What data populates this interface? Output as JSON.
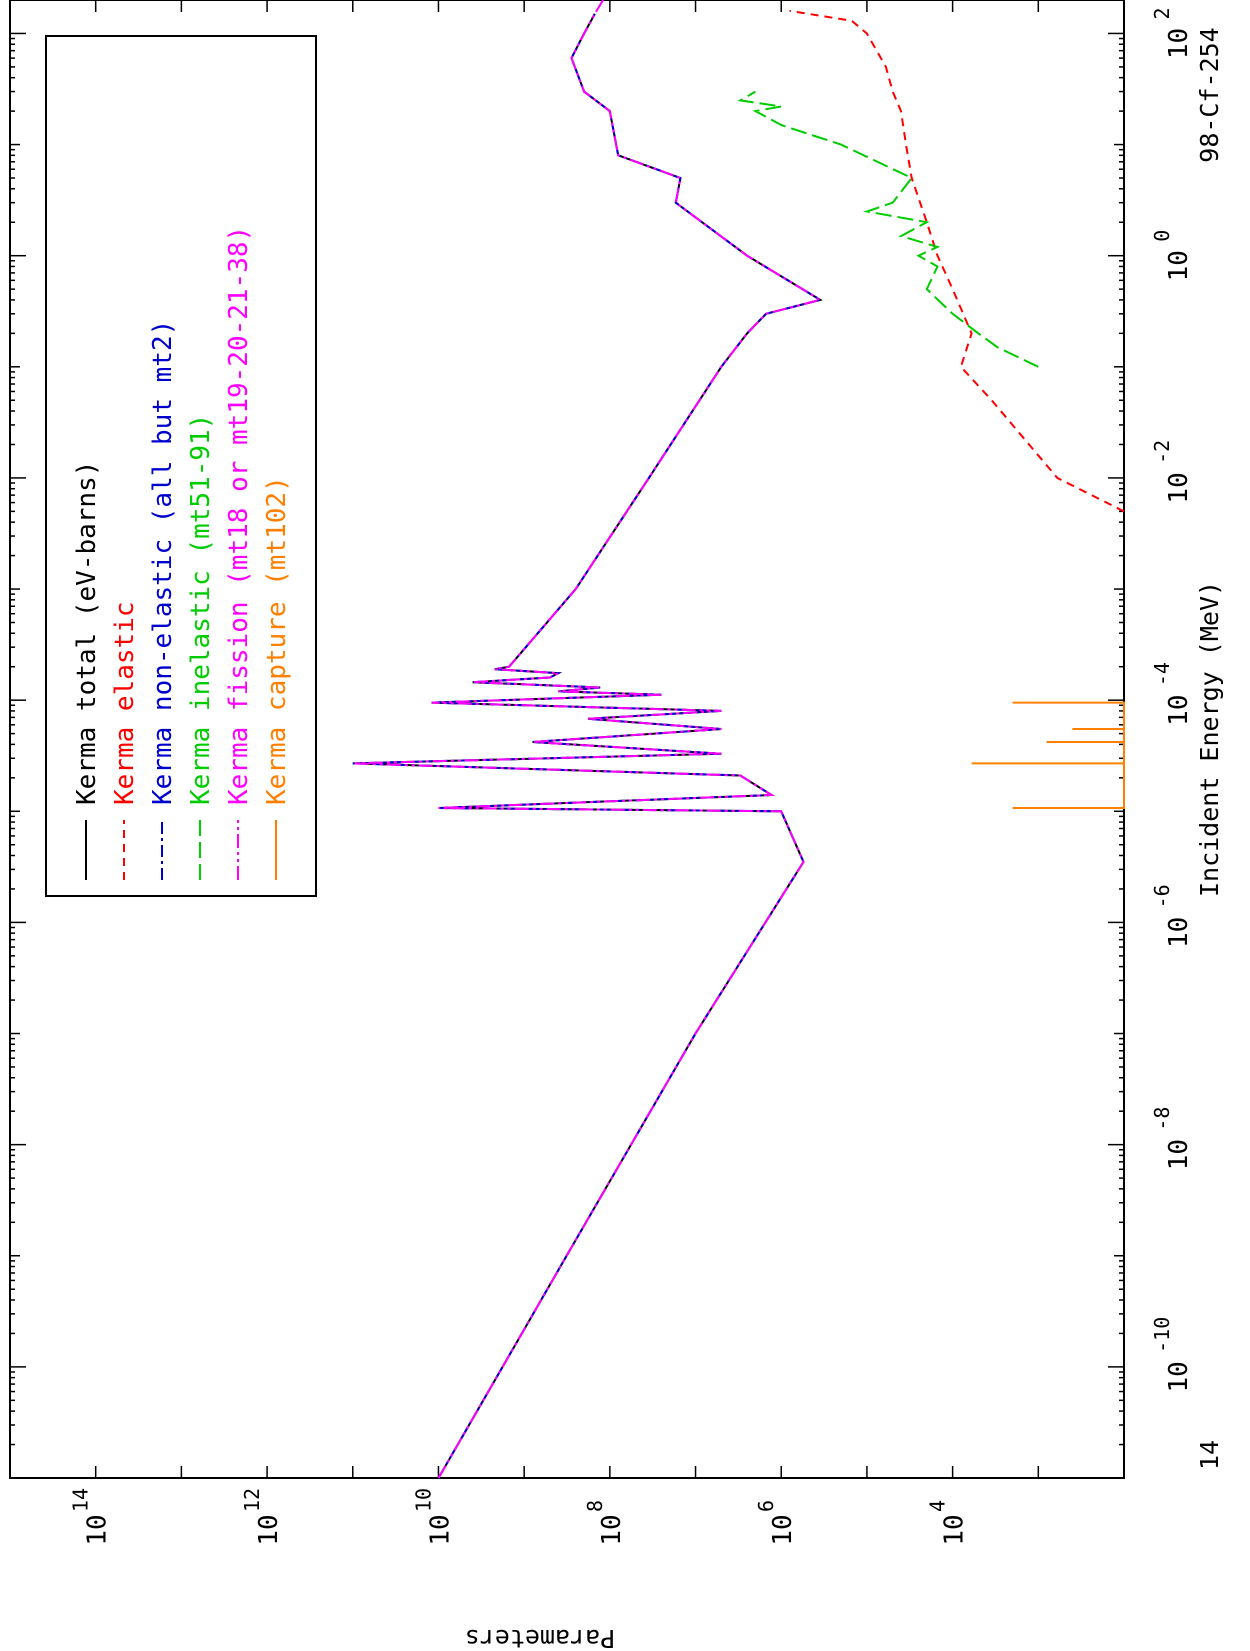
{
  "chart_data": {
    "type": "line",
    "orientation": "rotated-90-clockwise",
    "x_axis": {
      "label": "Incident Energy (MeV)",
      "scale": "log",
      "range": [
        1e-11,
        200
      ],
      "major_ticks": [
        {
          "base": "10",
          "exp": "-10",
          "value": 1e-10
        },
        {
          "base": "10",
          "exp": "-8",
          "value": 1e-08
        },
        {
          "base": "10",
          "exp": "-6",
          "value": 1e-06
        },
        {
          "base": "10",
          "exp": "-4",
          "value": 0.0001
        },
        {
          "base": "10",
          "exp": "-2",
          "value": 0.01
        },
        {
          "base": "10",
          "exp": "0",
          "value": 1
        },
        {
          "base": "10",
          "exp": "2",
          "value": 100
        }
      ]
    },
    "y_axis": {
      "label": "Parameters",
      "scale": "log",
      "range": [
        100.0,
        1000000000000000.0
      ],
      "major_ticks": [
        {
          "base": "10",
          "exp": "4",
          "value": 10000.0
        },
        {
          "base": "10",
          "exp": "6",
          "value": 1000000.0
        },
        {
          "base": "10",
          "exp": "8",
          "value": 100000000.0
        },
        {
          "base": "10",
          "exp": "10",
          "value": 10000000000.0
        },
        {
          "base": "10",
          "exp": "12",
          "value": 1000000000000.0
        },
        {
          "base": "10",
          "exp": "14",
          "value": 100000000000000.0
        }
      ]
    },
    "top_left_label": "14",
    "material_label": "98-Cf-254",
    "legend": {
      "placement": "top-left",
      "entries": [
        {
          "prefix": "Kerma",
          "text": "total  (eV-barns)",
          "color": "#000000",
          "dash": "solid"
        },
        {
          "prefix": "Kerma",
          "text": "elastic",
          "color": "#ff0000",
          "dash": "dash"
        },
        {
          "prefix": "Kerma",
          "text": "non-elastic (all but mt2)",
          "color": "#0000cc",
          "dash": "dashdot"
        },
        {
          "prefix": "Kerma",
          "text": "inelastic (mt51-91)",
          "color": "#00cc00",
          "dash": "longdash"
        },
        {
          "prefix": "Kerma",
          "text": "fission (mt18 or mt19-20-21-38)",
          "color": "#ff00ff",
          "dash": "dashdotdot"
        },
        {
          "prefix": "Kerma",
          "text": "capture (mt102)",
          "color": "#ff8000",
          "dash": "solid"
        }
      ]
    },
    "series": [
      {
        "name": "Kerma total",
        "color": "#000000",
        "points": [
          [
            1e-11,
            10000000000.0
          ],
          [
            1e-09,
            320000000.0
          ],
          [
            1e-07,
            10000000.0
          ],
          [
            3.5e-06,
            550000.0
          ],
          [
            1e-05,
            1000000.0
          ],
          [
            1.07e-05,
            10000000000.0
          ],
          [
            1.4e-05,
            1300000.0
          ],
          [
            2.1e-05,
            3000000.0
          ],
          [
            2.7e-05,
            100000000000.0
          ],
          [
            3.3e-05,
            5000000.0
          ],
          [
            4.2e-05,
            800000000.0
          ],
          [
            5.5e-05,
            5000000.0
          ],
          [
            6.8e-05,
            180000000.0
          ],
          [
            8e-05,
            5000000.0
          ],
          [
            9.5e-05,
            12000000000.0
          ],
          [
            0.000112,
            25000000.0
          ],
          [
            0.00012,
            400000000.0
          ],
          [
            0.00013,
            130000000.0
          ],
          [
            0.000145,
            4000000000.0
          ],
          [
            0.00016,
            500000000.0
          ],
          [
            0.000175,
            400000000.0
          ],
          [
            0.00019,
            2200000000.0
          ],
          [
            0.0002,
            1500000000.0
          ],
          [
            0.001,
            250000000.0
          ],
          [
            0.01,
            35000000.0
          ],
          [
            0.1,
            5000000.0
          ],
          [
            0.2,
            2500000.0
          ],
          [
            0.3,
            1500000.0
          ],
          [
            0.4,
            350000.0
          ],
          [
            1,
            2500000.0
          ],
          [
            3,
            17000000.0
          ],
          [
            5,
            15000000.0
          ],
          [
            8,
            80000000.0
          ],
          [
            20,
            100000000.0
          ],
          [
            30,
            200000000.0
          ],
          [
            60,
            280000000.0
          ],
          [
            100,
            200000000.0
          ],
          [
            150,
            150000000.0
          ]
        ]
      },
      {
        "name": "Kerma elastic",
        "color": "#ff0000",
        "points": [
          [
            0.005,
            100.0
          ],
          [
            0.01,
            600.0
          ],
          [
            0.05,
            3500.0
          ],
          [
            0.1,
            8000.0
          ],
          [
            0.2,
            6000.0
          ],
          [
            0.5,
            10000.0
          ],
          [
            1,
            15000.0
          ],
          [
            2,
            20000.0
          ],
          [
            5,
            30000.0
          ],
          [
            10,
            35000.0
          ],
          [
            20,
            40000.0
          ],
          [
            30,
            50000.0
          ],
          [
            50,
            60000.0
          ],
          [
            100,
            100000.0
          ],
          [
            130,
            150000.0
          ],
          [
            160,
            800000.0
          ]
        ]
      },
      {
        "name": "Kerma non-elastic",
        "color": "#0000cc",
        "points": [
          [
            1e-11,
            10000000000.0
          ],
          [
            1e-09,
            320000000.0
          ],
          [
            1e-07,
            10000000.0
          ],
          [
            3.5e-06,
            550000.0
          ],
          [
            1e-05,
            1000000.0
          ],
          [
            1.07e-05,
            10000000000.0
          ],
          [
            1.4e-05,
            1300000.0
          ],
          [
            2.1e-05,
            3000000.0
          ],
          [
            2.7e-05,
            100000000000.0
          ],
          [
            3.3e-05,
            5000000.0
          ],
          [
            4.2e-05,
            800000000.0
          ],
          [
            5.5e-05,
            5000000.0
          ],
          [
            6.8e-05,
            180000000.0
          ],
          [
            8e-05,
            5000000.0
          ],
          [
            9.5e-05,
            12000000000.0
          ],
          [
            0.000112,
            25000000.0
          ],
          [
            0.00012,
            400000000.0
          ],
          [
            0.00013,
            130000000.0
          ],
          [
            0.000145,
            4000000000.0
          ],
          [
            0.00016,
            500000000.0
          ],
          [
            0.000175,
            400000000.0
          ],
          [
            0.00019,
            2200000000.0
          ],
          [
            0.0002,
            1500000000.0
          ],
          [
            0.001,
            250000000.0
          ],
          [
            0.01,
            35000000.0
          ],
          [
            0.1,
            5000000.0
          ],
          [
            0.2,
            2500000.0
          ],
          [
            0.3,
            1500000.0
          ],
          [
            0.4,
            350000.0
          ],
          [
            1,
            2500000.0
          ],
          [
            3,
            17000000.0
          ],
          [
            5,
            15000000.0
          ],
          [
            8,
            80000000.0
          ],
          [
            20,
            100000000.0
          ],
          [
            30,
            200000000.0
          ],
          [
            60,
            280000000.0
          ],
          [
            100,
            200000000.0
          ],
          [
            150,
            150000000.0
          ]
        ]
      },
      {
        "name": "Kerma inelastic",
        "color": "#00cc00",
        "points": [
          [
            0.1,
            1000.0
          ],
          [
            0.15,
            3000.0
          ],
          [
            0.2,
            5000.0
          ],
          [
            0.3,
            10000.0
          ],
          [
            0.5,
            20000.0
          ],
          [
            0.8,
            15000.0
          ],
          [
            1,
            25000.0
          ],
          [
            1.2,
            15000.0
          ],
          [
            1.5,
            40000.0
          ],
          [
            2,
            20000.0
          ],
          [
            2.5,
            100000.0
          ],
          [
            3,
            50000.0
          ],
          [
            5,
            30000.0
          ],
          [
            10,
            200000.0
          ],
          [
            15,
            1000000.0
          ],
          [
            20,
            2000000.0
          ],
          [
            22,
            1000000.0
          ],
          [
            25,
            3000000.0
          ],
          [
            30,
            2000000.0
          ]
        ]
      },
      {
        "name": "Kerma fission",
        "color": "#ff00ff",
        "points": [
          [
            1e-11,
            10000000000.0
          ],
          [
            1e-09,
            320000000.0
          ],
          [
            1e-07,
            10000000.0
          ],
          [
            3.5e-06,
            550000.0
          ],
          [
            1e-05,
            1000000.0
          ],
          [
            1.07e-05,
            10000000000.0
          ],
          [
            1.4e-05,
            1300000.0
          ],
          [
            2.1e-05,
            3000000.0
          ],
          [
            2.7e-05,
            100000000000.0
          ],
          [
            3.3e-05,
            5000000.0
          ],
          [
            4.2e-05,
            800000000.0
          ],
          [
            5.5e-05,
            5000000.0
          ],
          [
            6.8e-05,
            180000000.0
          ],
          [
            8e-05,
            5000000.0
          ],
          [
            9.5e-05,
            12000000000.0
          ],
          [
            0.000112,
            25000000.0
          ],
          [
            0.00012,
            400000000.0
          ],
          [
            0.00013,
            130000000.0
          ],
          [
            0.000145,
            4000000000.0
          ],
          [
            0.00016,
            500000000.0
          ],
          [
            0.000175,
            400000000.0
          ],
          [
            0.00019,
            2200000000.0
          ],
          [
            0.0002,
            1500000000.0
          ],
          [
            0.001,
            250000000.0
          ],
          [
            0.01,
            35000000.0
          ],
          [
            0.1,
            5000000.0
          ],
          [
            0.2,
            2500000.0
          ],
          [
            0.3,
            1500000.0
          ],
          [
            0.4,
            350000.0
          ],
          [
            1,
            2500000.0
          ],
          [
            3,
            17000000.0
          ],
          [
            5,
            15000000.0
          ],
          [
            8,
            80000000.0
          ],
          [
            20,
            100000000.0
          ],
          [
            30,
            200000000.0
          ],
          [
            60,
            280000000.0
          ],
          [
            100,
            200000000.0
          ],
          [
            150,
            150000000.0
          ],
          [
            200,
            120000000.0
          ]
        ]
      },
      {
        "name": "Kerma capture",
        "color": "#ff8000",
        "points": [
          [
            1.07e-05,
            100
          ],
          [
            1.07e-05,
            2000.0
          ],
          [
            1.07e-05,
            100
          ],
          [
            2.7e-05,
            100
          ],
          [
            2.7e-05,
            6000.0
          ],
          [
            2.7e-05,
            100
          ],
          [
            4.2e-05,
            100
          ],
          [
            4.2e-05,
            800.0
          ],
          [
            4.2e-05,
            100
          ],
          [
            5.5e-05,
            100
          ],
          [
            5.5e-05,
            400.0
          ],
          [
            5.5e-05,
            100
          ],
          [
            9.5e-05,
            100
          ],
          [
            9.5e-05,
            2000.0
          ],
          [
            9.5e-05,
            100
          ]
        ]
      }
    ]
  }
}
